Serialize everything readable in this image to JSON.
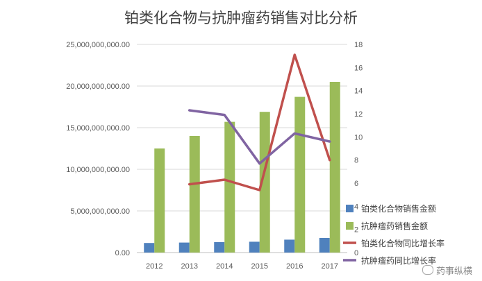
{
  "chart_data": {
    "type": "bar+line",
    "title": "铂类化合物与抗肿瘤药销售对比分析",
    "categories": [
      "2012",
      "2013",
      "2014",
      "2015",
      "2016",
      "2017"
    ],
    "y_left": {
      "ylim": [
        0,
        25000000000
      ],
      "ticks": [
        "0.00",
        "5,000,000,000.00",
        "10,000,000,000.00",
        "15,000,000,000.00",
        "20,000,000,000.00",
        "25,000,000,000.00"
      ]
    },
    "y_right": {
      "ylim": [
        0,
        18
      ],
      "ticks": [
        "0",
        "2",
        "4",
        "6",
        "8",
        "10",
        "12",
        "14",
        "16",
        "18"
      ]
    },
    "grid": true,
    "legend_position": "bottom-right",
    "series": [
      {
        "name": "铂类化合物销售金额",
        "kind": "bar",
        "axis": "left",
        "color": "#4f81bd",
        "values": [
          1150000000,
          1200000000,
          1250000000,
          1300000000,
          1550000000,
          1750000000
        ]
      },
      {
        "name": "抗肿瘤药销售金额",
        "kind": "bar",
        "axis": "left",
        "color": "#9bbb59",
        "values": [
          12500000000,
          14000000000,
          15700000000,
          16900000000,
          18700000000,
          20500000000
        ]
      },
      {
        "name": "铂类化合物同比增长率",
        "kind": "line",
        "axis": "right",
        "color": "#c0504d",
        "values": [
          null,
          5.9,
          6.3,
          5.4,
          17.1,
          8.0
        ]
      },
      {
        "name": "抗肿瘤药同比增长率",
        "kind": "line",
        "axis": "right",
        "color": "#8064a2",
        "values": [
          null,
          12.3,
          11.9,
          7.7,
          10.3,
          9.6
        ]
      }
    ]
  },
  "watermark": "药事纵横"
}
